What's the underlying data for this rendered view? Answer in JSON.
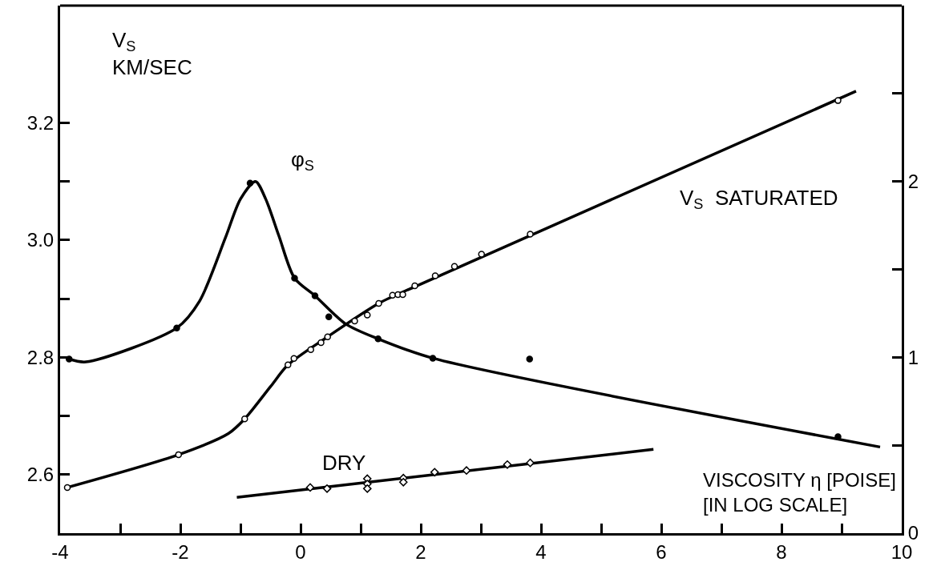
{
  "chart_data": {
    "type": "line",
    "xlabel": "VISCOSITY η [POISE]\n[IN LOG SCALE]",
    "ylabel": "V$_{S}$\nKM/SEC",
    "xlim": [
      -4,
      10
    ],
    "xticks": [
      -4,
      {
        "value": -3,
        "label": null
      },
      -2,
      {
        "value": -1,
        "label": null
      },
      0,
      {
        "value": 1,
        "label": null
      },
      2,
      {
        "value": 3,
        "label": null
      },
      4,
      {
        "value": 5,
        "label": null
      },
      6,
      {
        "value": 7,
        "label": null
      },
      8,
      {
        "value": 9,
        "label": null
      },
      10
    ],
    "ylim": [
      2.5,
      3.4
    ],
    "yticks": [
      {
        "value": 2.6,
        "label": "2.6"
      },
      {
        "value": 2.7,
        "label": null
      },
      {
        "value": 2.8,
        "label": "2.8"
      },
      {
        "value": 2.9,
        "label": null
      },
      {
        "value": 3.0,
        "label": "3.0"
      },
      {
        "value": 3.1,
        "label": null
      },
      {
        "value": 3.2,
        "label": "3.2"
      }
    ],
    "y2lim": [
      0,
      3
    ],
    "y2ticks": [
      0,
      {
        "value": 0.5,
        "label": null
      },
      1,
      {
        "value": 1.5,
        "label": null
      },
      2,
      {
        "value": 2.5,
        "label": null
      }
    ],
    "annotations": [
      "φ$_{S}$",
      "V$_{S}$  SATURATED",
      "DRY"
    ],
    "series": [
      {
        "axis": "y2",
        "color": "#000000",
        "marker": "none",
        "x": [
          -3.85,
          -3.57,
          -2.06,
          -1.68,
          -1.25,
          -1.0,
          -0.75,
          -0.58,
          -0.36,
          -0.1,
          0.24,
          0.75,
          1.29,
          2.2,
          9.64
        ],
        "values": [
          0.99,
          0.974,
          1.167,
          1.32,
          1.68,
          1.9,
          2.0,
          1.9,
          1.69,
          1.45,
          1.35,
          1.19,
          1.105,
          0.995,
          0.49
        ]
      },
      {
        "type": "scatter",
        "axis": "y2",
        "color": "#000000",
        "marker": "circle",
        "x": [
          -3.85,
          -2.06,
          -0.84,
          -0.1,
          0.24,
          0.47,
          1.29,
          2.2,
          3.81,
          8.94
        ],
        "values": [
          0.99,
          1.167,
          1.99,
          1.45,
          1.35,
          1.23,
          1.105,
          0.995,
          0.99,
          0.548
        ]
      },
      {
        "color": "#000000",
        "marker": "none",
        "x": [
          -3.88,
          -2.03,
          -1.2,
          -0.93,
          -0.5,
          -0.21,
          0.45,
          1.3,
          2.0,
          9.24
        ],
        "values": [
          2.578,
          2.634,
          2.67,
          2.695,
          2.75,
          2.787,
          2.835,
          2.892,
          2.925,
          3.254
        ]
      },
      {
        "type": "scatter",
        "color": "#000000",
        "marker": "circle-open",
        "x": [
          -3.88,
          -2.03,
          -0.93,
          -0.21,
          -0.11,
          0.17,
          0.34,
          0.45,
          0.9,
          1.11,
          1.3,
          1.53,
          1.62,
          1.7,
          1.9,
          2.24,
          2.56,
          3.01,
          3.82,
          8.94
        ],
        "values": [
          2.578,
          2.634,
          2.695,
          2.787,
          2.798,
          2.813,
          2.825,
          2.835,
          2.862,
          2.872,
          2.892,
          2.906,
          2.907,
          2.907,
          2.922,
          2.939,
          2.955,
          2.976,
          3.01,
          3.238
        ]
      },
      {
        "color": "#000000",
        "marker": "none",
        "x": [
          -1.06,
          5.87
        ],
        "values": [
          2.561,
          2.643
        ]
      },
      {
        "type": "scatter",
        "color": "#000000",
        "marker": "diamond-open",
        "x": [
          0.16,
          0.44,
          1.11,
          1.11,
          1.11,
          1.71,
          1.71,
          2.23,
          2.76,
          3.44,
          3.82
        ],
        "values": [
          2.578,
          2.576,
          2.593,
          2.584,
          2.576,
          2.594,
          2.587,
          2.604,
          2.607,
          2.617,
          2.62
        ]
      }
    ]
  }
}
